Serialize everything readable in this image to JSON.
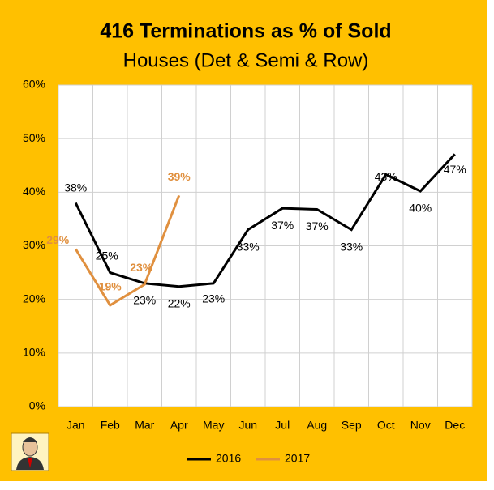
{
  "chart_data": {
    "type": "line",
    "title": "416 Terminations as % of Sold",
    "subtitle": "Houses (Det & Semi & Row)",
    "categories": [
      "Jan",
      "Feb",
      "Mar",
      "Apr",
      "May",
      "Jun",
      "Jul",
      "Aug",
      "Sep",
      "Oct",
      "Nov",
      "Dec"
    ],
    "series": [
      {
        "name": "2016",
        "color": "#000000",
        "values": [
          38,
          25,
          23,
          22.4,
          23,
          33,
          37,
          36.8,
          33,
          43.3,
          40.2,
          47.1
        ],
        "value_labels": [
          "38%",
          "25%",
          "23%",
          "22%",
          "23%",
          "33%",
          "37%",
          "37%",
          "33%",
          "43%",
          "40%",
          "47%"
        ]
      },
      {
        "name": "2017",
        "color": "#E0903F",
        "values": [
          29.4,
          18.9,
          22.8,
          39.4,
          null,
          null,
          null,
          null,
          null,
          null,
          null,
          null
        ],
        "value_labels": [
          "29%",
          "19%",
          "23%",
          "39%",
          null,
          null,
          null,
          null,
          null,
          null,
          null,
          null
        ]
      }
    ],
    "ylim": [
      0,
      60
    ],
    "yticks": [
      {
        "value": 0,
        "label": "0%"
      },
      {
        "value": 10,
        "label": "10%"
      },
      {
        "value": 20,
        "label": "20%"
      },
      {
        "value": 30,
        "label": "30%"
      },
      {
        "value": 40,
        "label": "40%"
      },
      {
        "value": 50,
        "label": "50%"
      },
      {
        "value": 60,
        "label": "60%"
      }
    ],
    "grid": true,
    "legend": "bottom"
  }
}
